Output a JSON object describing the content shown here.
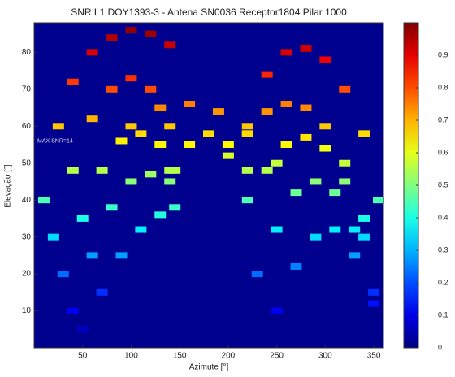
{
  "chart_data": {
    "type": "heatmap-scatter",
    "title": "SNR L1 DOY1393-3 - Antena SN0036 Receptor1804 Pilar 1000",
    "x_label": "Azimute [°]",
    "y_label": "Elevação [°]",
    "annotation": "MAX SNR=14",
    "colormap": "jet",
    "background": "#00008f",
    "xlim": [
      0,
      360
    ],
    "xticks": [
      50,
      100,
      150,
      200,
      250,
      300,
      350
    ],
    "ylim": [
      0,
      88
    ],
    "yticks": [
      10,
      20,
      30,
      40,
      50,
      60,
      70,
      80
    ],
    "clim": [
      0,
      1
    ],
    "cticks": [
      0,
      0.1,
      0.2,
      0.3,
      0.4,
      0.5,
      0.6,
      0.7,
      0.8,
      0.9
    ],
    "series": [
      {
        "x": [
          10,
          25,
          40,
          60,
          80,
          100,
          120,
          140
        ],
        "y": [
          40,
          60,
          72,
          80,
          84,
          86,
          85,
          82
        ],
        "values": [
          0.45,
          0.68,
          0.82,
          0.91,
          0.95,
          0.98,
          0.97,
          0.93
        ]
      },
      {
        "x": [
          20,
          40,
          60,
          80,
          100,
          120,
          140
        ],
        "y": [
          30,
          48,
          62,
          70,
          73,
          70,
          60
        ],
        "values": [
          0.34,
          0.55,
          0.7,
          0.8,
          0.83,
          0.8,
          0.68
        ]
      },
      {
        "x": [
          30,
          50,
          70,
          90,
          110,
          130,
          145
        ],
        "y": [
          20,
          35,
          48,
          56,
          58,
          55,
          48
        ],
        "values": [
          0.23,
          0.4,
          0.55,
          0.64,
          0.66,
          0.63,
          0.55
        ]
      },
      {
        "x": [
          40,
          60,
          80,
          100,
          120,
          140
        ],
        "y": [
          10,
          25,
          38,
          45,
          47,
          45
        ],
        "values": [
          0.11,
          0.28,
          0.43,
          0.51,
          0.53,
          0.51
        ]
      },
      {
        "x": [
          50,
          70,
          90,
          110,
          130,
          145
        ],
        "y": [
          5,
          15,
          25,
          32,
          36,
          38
        ],
        "values": [
          0.06,
          0.17,
          0.28,
          0.36,
          0.41,
          0.43
        ]
      },
      {
        "x": [
          220,
          240,
          260,
          280,
          300,
          320,
          340,
          355
        ],
        "y": [
          60,
          74,
          80,
          81,
          78,
          70,
          58,
          40
        ],
        "values": [
          0.68,
          0.84,
          0.91,
          0.92,
          0.89,
          0.8,
          0.66,
          0.45
        ]
      },
      {
        "x": [
          200,
          220,
          240,
          260,
          280,
          300,
          320,
          340
        ],
        "y": [
          52,
          58,
          64,
          66,
          65,
          60,
          50,
          35
        ],
        "values": [
          0.59,
          0.66,
          0.73,
          0.75,
          0.74,
          0.68,
          0.57,
          0.4
        ]
      },
      {
        "x": [
          220,
          240,
          260,
          280,
          300,
          320,
          340
        ],
        "y": [
          40,
          48,
          55,
          57,
          54,
          45,
          30
        ],
        "values": [
          0.45,
          0.55,
          0.63,
          0.65,
          0.61,
          0.51,
          0.34
        ]
      },
      {
        "x": [
          230,
          250,
          270,
          290,
          310,
          330,
          350
        ],
        "y": [
          20,
          32,
          42,
          45,
          42,
          32,
          15
        ],
        "values": [
          0.23,
          0.36,
          0.48,
          0.51,
          0.48,
          0.36,
          0.17
        ]
      },
      {
        "x": [
          250,
          270,
          290,
          310,
          330,
          350
        ],
        "y": [
          10,
          22,
          30,
          32,
          25,
          12
        ],
        "values": [
          0.11,
          0.25,
          0.34,
          0.36,
          0.28,
          0.14
        ]
      },
      {
        "x": [
          140,
          160,
          180,
          200,
          220
        ],
        "y": [
          48,
          55,
          58,
          55,
          48
        ],
        "values": [
          0.55,
          0.63,
          0.66,
          0.63,
          0.55
        ]
      },
      {
        "x": [
          100,
          130,
          160,
          190,
          220,
          250
        ],
        "y": [
          60,
          65,
          66,
          64,
          58,
          50
        ],
        "values": [
          0.68,
          0.74,
          0.75,
          0.73,
          0.66,
          0.57
        ]
      }
    ]
  }
}
